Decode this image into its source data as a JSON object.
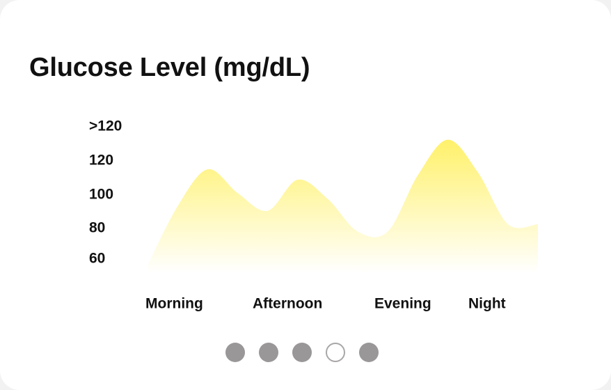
{
  "title": "Glucose Level (mg/dL)",
  "chart_data": {
    "type": "area",
    "title": "Glucose Level (mg/dL)",
    "xlabel": "",
    "ylabel": "",
    "y_tick_labels": [
      ">120",
      "120",
      "100",
      "80",
      "60"
    ],
    "categories": [
      "Morning",
      "Afternoon",
      "Evening",
      "Night"
    ],
    "x": [
      0.0,
      0.5,
      1.0,
      1.5,
      2.0,
      2.5,
      3.0,
      3.5,
      4.0,
      4.5,
      5.0,
      5.5,
      6.0,
      6.5
    ],
    "values": [
      55,
      95,
      120,
      104,
      92,
      113,
      100,
      78,
      78,
      116,
      140,
      118,
      83,
      83
    ],
    "ylim": [
      50,
      145
    ],
    "grid": false,
    "legend": "none",
    "colors": {
      "fill_top": "#fff16a",
      "fill_bottom": "#ffffff"
    }
  },
  "pagination": {
    "total": 5,
    "active_index": 3,
    "colors": {
      "inactive": "#9a9798",
      "active_border": "#a9a6a7"
    }
  }
}
